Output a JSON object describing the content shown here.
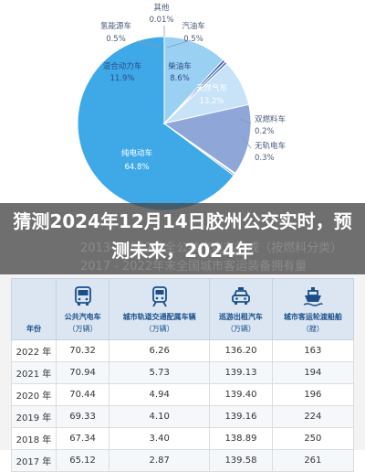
{
  "chart_data": {
    "type": "pie",
    "slices": [
      {
        "name": "纯电动车",
        "value": 64.8,
        "label": "64.8%",
        "color": "#3fa9e8"
      },
      {
        "name": "混合动力车",
        "value": 11.9,
        "label": "11.9%",
        "color": "#9ad0f2"
      },
      {
        "name": "氢能源车",
        "value": 0.5,
        "label": "0.5%",
        "color": "#3a62b0"
      },
      {
        "name": "其他",
        "value": 0.01,
        "label": "0.01%",
        "color": "#2a3f7a"
      },
      {
        "name": "汽油车",
        "value": 0.5,
        "label": "0.5%",
        "color": "#5c7fc6"
      },
      {
        "name": "柴油车",
        "value": 8.6,
        "label": "8.6%",
        "color": "#c8e3f7"
      },
      {
        "name": "天然气车",
        "value": 13.2,
        "label": "13.2%",
        "color": "#8fa6d8"
      },
      {
        "name": "双燃料车",
        "value": 0.2,
        "label": "0.2%",
        "color": "#b8c6e6"
      },
      {
        "name": "无轨电车",
        "value": 0.3,
        "label": "0.3%",
        "color": "#6f8fcf"
      }
    ]
  },
  "banner": {
    "title": "猜测2024年12月14日胶州公交实时，预测未来，2024年",
    "ghost_line1": "2013 - 2022年全公共汽电车构成（按燃料分类）",
    "ghost_line2": "2017 - 2022年末全国城市客运装备拥有量"
  },
  "table": {
    "year_header": "年份",
    "columns": [
      {
        "name": "公共汽电车",
        "unit": "（万辆）",
        "icon": "bus-icon"
      },
      {
        "name": "城市轨道交通配属车辆",
        "unit": "（万辆）",
        "icon": "metro-icon"
      },
      {
        "name": "巡游出租汽车",
        "unit": "（万辆）",
        "icon": "taxi-icon"
      },
      {
        "name": "城市客运轮渡船舶",
        "unit": "（艘）",
        "icon": "ship-icon"
      }
    ],
    "rows": [
      {
        "year": "2022 年",
        "values": [
          "70.32",
          "6.26",
          "136.20",
          "163"
        ]
      },
      {
        "year": "2021 年",
        "values": [
          "70.94",
          "5.73",
          "139.13",
          "194"
        ]
      },
      {
        "year": "2020 年",
        "values": [
          "70.44",
          "4.94",
          "139.40",
          "196"
        ]
      },
      {
        "year": "2019 年",
        "values": [
          "69.33",
          "4.10",
          "139.16",
          "224"
        ]
      },
      {
        "year": "2018 年",
        "values": [
          "67.34",
          "3.40",
          "138.89",
          "250"
        ]
      },
      {
        "year": "2017 年",
        "values": [
          "65.12",
          "2.87",
          "139.58",
          "261"
        ]
      }
    ]
  }
}
